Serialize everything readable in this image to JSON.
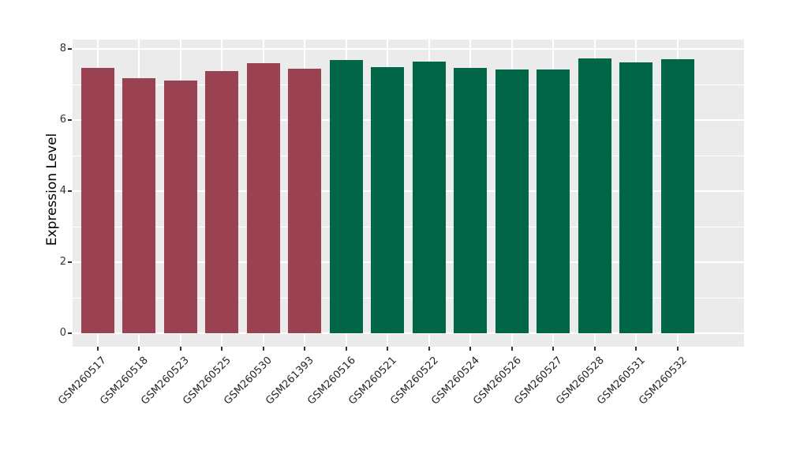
{
  "figure": {
    "background": "#FFFFFF",
    "panel_background": "#EBEBEB",
    "gridline_color": "#FFFFFF",
    "axis_text_color": "#333333",
    "tick_mark_color": "#333333",
    "maroon": "#9B4252",
    "green": "#006647"
  },
  "chart_data": {
    "type": "bar",
    "title": "",
    "xlabel": "",
    "ylabel": "Expression Level",
    "ylim": [
      0,
      8.3
    ],
    "yticks": [
      0,
      2,
      4,
      6,
      8
    ],
    "yticks_minor": [
      1,
      3,
      5,
      7
    ],
    "grid": true,
    "legend_position": "none",
    "x_tick_angle": 45,
    "categories": [
      "GSM260517",
      "GSM260518",
      "GSM260523",
      "GSM260525",
      "GSM260530",
      "GSM261393",
      "GSM260516",
      "GSM260521",
      "GSM260522",
      "GSM260524",
      "GSM260526",
      "GSM260527",
      "GSM260528",
      "GSM260531",
      "GSM260532"
    ],
    "values": [
      7.47,
      7.17,
      7.12,
      7.38,
      7.6,
      7.44,
      7.69,
      7.5,
      7.64,
      7.47,
      7.42,
      7.42,
      7.73,
      7.62,
      7.71
    ],
    "bar_colors": [
      "#9B4252",
      "#9B4252",
      "#9B4252",
      "#9B4252",
      "#9B4252",
      "#9B4252",
      "#006647",
      "#006647",
      "#006647",
      "#006647",
      "#006647",
      "#006647",
      "#006647",
      "#006647",
      "#006647"
    ]
  }
}
